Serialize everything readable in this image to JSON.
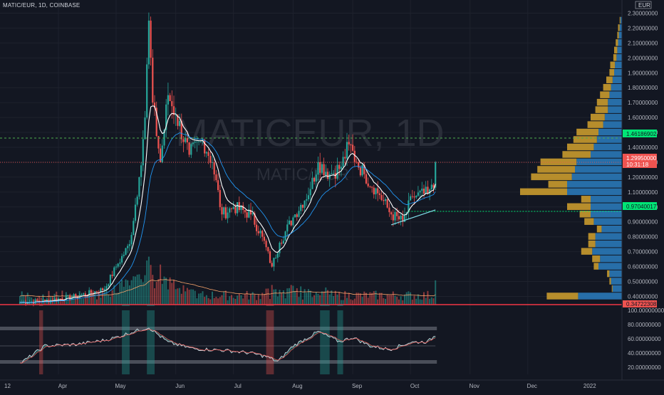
{
  "header": {
    "symbol_line": "MATIC/EUR, 1D, COINBASE",
    "currency": "EUR"
  },
  "watermark": {
    "title": "MATICEUR, 1D",
    "subtitle": "MATIC/EUR"
  },
  "colors": {
    "background": "#131722",
    "up": "#26a69a",
    "down": "#ef5350",
    "grid": "#1e222d",
    "last_price": "#ef5350",
    "resistance": "#4caf50",
    "vp_buy": "#2a78b7",
    "vp_sell": "#c99a2e",
    "ema_fast": "#ffffff",
    "ema_slow": "#2196f3"
  },
  "price_tags": {
    "resistance": "1.46186902",
    "last_price": "1.29950000",
    "countdown": "10:31:18",
    "support": "0.97040017",
    "low_level": "0.34722308"
  },
  "chart_data": [
    {
      "type": "candlestick",
      "title": "",
      "y_axis_ticks": [
        "2.30000000",
        "2.20000000",
        "2.10000000",
        "2.00000000",
        "1.90000000",
        "1.80000000",
        "1.70000000",
        "1.60000000",
        "1.50000000",
        "1.40000000",
        "1.30000000",
        "1.20000000",
        "1.10000000",
        "1.00000000",
        "0.90000000",
        "0.80000000",
        "0.70000000",
        "0.60000000",
        "0.50000000",
        "0.40000000"
      ],
      "ylim": [
        0.345,
        2.35
      ],
      "x_axis_ticks": [
        "12",
        "Apr",
        "May",
        "Jun",
        "Jul",
        "Aug",
        "Sep",
        "Oct",
        "Nov",
        "Dec",
        "2022"
      ],
      "series": [
        {
          "name": "Price",
          "anchor_closes": {
            "03-12": 0.36,
            "03-25": 0.37,
            "04-10": 0.4,
            "04-25": 0.45,
            "05-01": 0.6,
            "05-08": 0.75,
            "05-13": 1.2,
            "05-16": 1.6,
            "05-18": 2.25,
            "05-20": 1.7,
            "05-24": 1.3,
            "05-28": 1.75,
            "06-01": 1.62,
            "06-08": 1.35,
            "06-15": 1.45,
            "06-20": 1.3,
            "06-25": 0.95,
            "07-01": 1.0,
            "07-10": 0.95,
            "07-16": 0.8,
            "07-21": 0.6,
            "07-25": 0.76,
            "08-01": 0.93,
            "08-10": 1.12,
            "08-14": 1.3,
            "08-20": 1.22,
            "08-26": 1.27,
            "08-30": 1.42,
            "09-03": 1.3,
            "09-07": 1.22,
            "09-15": 1.08,
            "09-21": 0.95,
            "09-27": 0.9,
            "10-02": 1.07,
            "10-10": 1.09,
            "10-13": 1.13,
            "10-14": 1.3
          }
        },
        {
          "name": "Volume",
          "peak_date": "05-19"
        }
      ],
      "volume_profile": {
        "levels": [
          0.4,
          0.45,
          0.5,
          0.55,
          0.6,
          0.65,
          0.7,
          0.75,
          0.8,
          0.85,
          0.9,
          0.95,
          1.0,
          1.05,
          1.1,
          1.15,
          1.2,
          1.25,
          1.3,
          1.35,
          1.4,
          1.45,
          1.5,
          1.55,
          1.6,
          1.65,
          1.7,
          1.75,
          1.8,
          1.85,
          1.9,
          1.95,
          2.0,
          2.05,
          2.1,
          2.15,
          2.2,
          2.25
        ],
        "buy": [
          56,
          12,
          14,
          16,
          30,
          28,
          38,
          34,
          34,
          26,
          36,
          40,
          40,
          40,
          70,
          70,
          64,
          60,
          58,
          40,
          36,
          32,
          30,
          24,
          22,
          18,
          18,
          16,
          14,
          12,
          10,
          9,
          7,
          6,
          5,
          4,
          3,
          2
        ],
        "sell": [
          40,
          1,
          2,
          3,
          6,
          10,
          14,
          9,
          9,
          6,
          12,
          14,
          30,
          12,
          60,
          24,
          52,
          48,
          46,
          36,
          34,
          30,
          28,
          20,
          18,
          16,
          14,
          12,
          10,
          8,
          6,
          6,
          4,
          4,
          3,
          2,
          2,
          1
        ]
      }
    },
    {
      "type": "line",
      "title": "",
      "y_axis_ticks": [
        "100.00000000",
        "80.00000000",
        "60.00000000",
        "40.00000000",
        "20.00000000"
      ],
      "ylim": [
        10,
        100
      ],
      "bands": [
        [
          25,
          30
        ],
        [
          72,
          77
        ]
      ],
      "midline": 50,
      "series": [
        {
          "name": "Oscillator",
          "anchor_values": {
            "03-12": 25,
            "03-25": 50,
            "04-10": 52,
            "04-25": 58,
            "05-01": 62,
            "05-10": 70,
            "05-18": 76,
            "05-28": 55,
            "06-10": 46,
            "06-25": 44,
            "07-10": 40,
            "07-18": 35,
            "07-24": 28,
            "08-01": 50,
            "08-14": 70,
            "08-25": 56,
            "09-01": 62,
            "09-10": 50,
            "09-20": 45,
            "10-01": 55,
            "10-10": 56,
            "10-14": 65
          }
        }
      ]
    }
  ]
}
